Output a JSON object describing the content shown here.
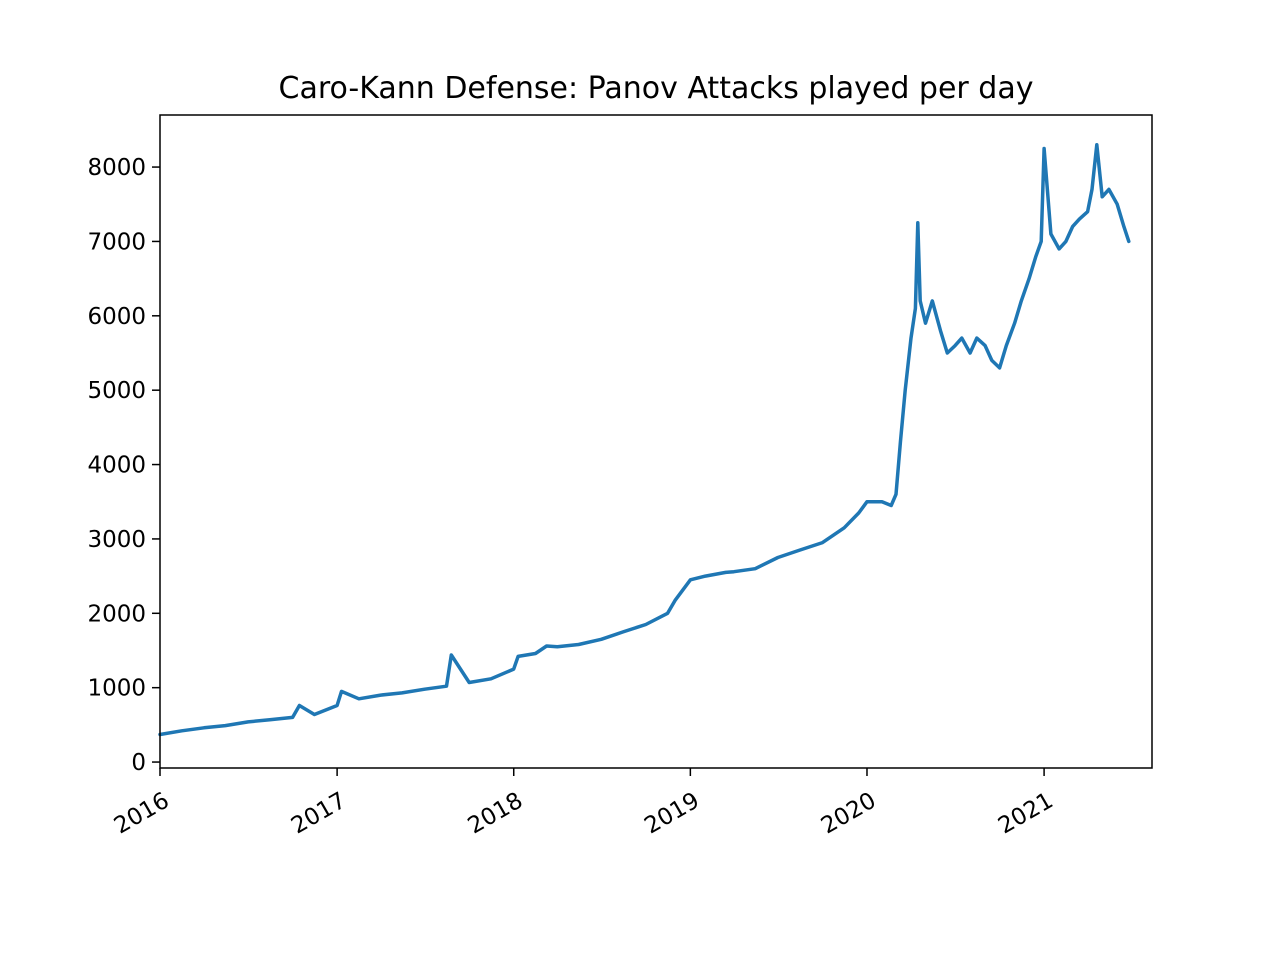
{
  "chart_data": {
    "type": "line",
    "title": "Caro-Kann Defense: Panov Attacks played per day",
    "xlabel": "",
    "ylabel": "",
    "x_range": [
      "2016-01-01",
      "2021-08-12"
    ],
    "ylim": [
      -80,
      8700
    ],
    "grid": false,
    "legend": "none",
    "x_ticks": [
      {
        "date": "2016-01-01",
        "label": "2016"
      },
      {
        "date": "2017-01-01",
        "label": "2017"
      },
      {
        "date": "2018-01-01",
        "label": "2018"
      },
      {
        "date": "2019-01-01",
        "label": "2019"
      },
      {
        "date": "2020-01-01",
        "label": "2020"
      },
      {
        "date": "2021-01-01",
        "label": "2021"
      }
    ],
    "y_ticks": [
      {
        "value": 0,
        "label": "0"
      },
      {
        "value": 1000,
        "label": "1000"
      },
      {
        "value": 2000,
        "label": "2000"
      },
      {
        "value": 3000,
        "label": "3000"
      },
      {
        "value": 4000,
        "label": "4000"
      },
      {
        "value": 5000,
        "label": "5000"
      },
      {
        "value": 6000,
        "label": "6000"
      },
      {
        "value": 7000,
        "label": "7000"
      },
      {
        "value": 8000,
        "label": "8000"
      }
    ],
    "series": [
      {
        "color": "#1f77b4",
        "x": [
          "2016-01-01",
          "2016-02-15",
          "2016-04-01",
          "2016-05-15",
          "2016-07-01",
          "2016-08-15",
          "2016-10-01",
          "2016-10-15",
          "2016-11-15",
          "2017-01-01",
          "2017-01-10",
          "2017-02-15",
          "2017-04-01",
          "2017-05-15",
          "2017-07-01",
          "2017-08-15",
          "2017-08-25",
          "2017-10-01",
          "2017-11-15",
          "2018-01-01",
          "2018-01-10",
          "2018-02-15",
          "2018-03-10",
          "2018-04-01",
          "2018-05-15",
          "2018-07-01",
          "2018-08-15",
          "2018-10-01",
          "2018-11-15",
          "2018-12-01",
          "2019-01-01",
          "2019-02-01",
          "2019-03-15",
          "2019-04-01",
          "2019-05-15",
          "2019-07-01",
          "2019-08-15",
          "2019-10-01",
          "2019-11-15",
          "2019-12-15",
          "2020-01-01",
          "2020-02-01",
          "2020-02-20",
          "2020-03-01",
          "2020-03-10",
          "2020-03-20",
          "2020-04-01",
          "2020-04-10",
          "2020-04-15",
          "2020-04-20",
          "2020-05-01",
          "2020-05-15",
          "2020-06-01",
          "2020-06-15",
          "2020-07-01",
          "2020-07-15",
          "2020-08-01",
          "2020-08-15",
          "2020-09-01",
          "2020-09-15",
          "2020-10-01",
          "2020-10-15",
          "2020-11-01",
          "2020-11-15",
          "2020-12-01",
          "2020-12-15",
          "2020-12-26",
          "2021-01-01",
          "2021-01-15",
          "2021-02-01",
          "2021-02-15",
          "2021-03-01",
          "2021-03-15",
          "2021-04-01",
          "2021-04-10",
          "2021-04-20",
          "2021-05-01",
          "2021-05-15",
          "2021-06-01",
          "2021-06-15",
          "2021-06-25"
        ],
        "y": [
          370,
          420,
          460,
          490,
          540,
          570,
          600,
          760,
          640,
          760,
          950,
          850,
          900,
          930,
          980,
          1020,
          1440,
          1070,
          1120,
          1250,
          1420,
          1460,
          1560,
          1550,
          1580,
          1650,
          1750,
          1850,
          2000,
          2180,
          2450,
          2500,
          2550,
          2560,
          2600,
          2750,
          2850,
          2950,
          3150,
          3350,
          3500,
          3500,
          3450,
          3600,
          4300,
          5000,
          5700,
          6100,
          7250,
          6200,
          5900,
          6200,
          5800,
          5500,
          5600,
          5700,
          5500,
          5700,
          5600,
          5400,
          5300,
          5600,
          5900,
          6200,
          6500,
          6800,
          7000,
          8250,
          7100,
          6900,
          7000,
          7200,
          7300,
          7400,
          7700,
          8300,
          7600,
          7700,
          7500,
          7200,
          7000
        ]
      }
    ]
  }
}
